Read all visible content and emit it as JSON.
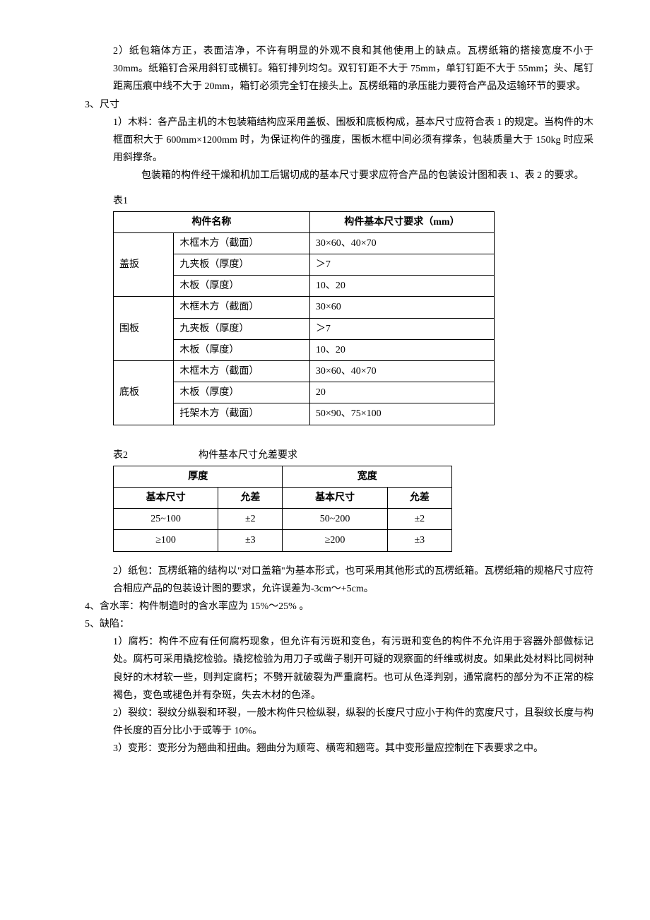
{
  "items": {
    "item2_2": "2）纸包箱体方正，表面洁净，不许有明显的外观不良和其他使用上的缺点。瓦楞纸箱的搭接宽度不小于 30mm。纸箱钉合采用斜钉或横钉。箱钉排列均匀。双钉钉距不大于 75mm，单钉钉距不大于 55mm；头、尾钉距离压痕中线不大于 20mm，箱钉必须完全钉在接头上。瓦楞纸箱的承压能力要符合产品及运输环节的要求。",
    "item3_header": "3、尺寸",
    "item3_1": "1）木料：各产品主机的木包装箱结构应采用盖板、围板和底板构成，基本尺寸应符合表 1 的规定。当构件的木框面积大于 600mm×1200mm 时，为保证构件的强度，围板木框中间必须有撑条，包装质量大于 150kg 时应采用斜撑条。",
    "item3_1_cont": "包装箱的构件经干燥和机加工后锯切成的基本尺寸要求应符合产品的包装设计图和表 1、表 2 的要求。",
    "item3_2": "2）纸包：瓦楞纸箱的结构以\"对口盖箱\"为基本形式，也可采用其他形式的瓦楞纸箱。瓦楞纸箱的规格尺寸应符合相应产品的包装设计图的要求，允许误差为-3cm～+5cm。",
    "item4": "4、含水率：构件制造时的含水率应为 15%～25% 。",
    "item5_header": "5、缺陷：",
    "item5_1": "1）腐朽：构件不应有任何腐朽现象，但允许有污斑和变色，有污斑和变色的构件不允许用于容器外部做标记处。腐朽可采用撬挖检验。撬挖检验为用刀子或凿子剔开可疑的观察面的纤维或树皮。如果此处材料比同树种良好的木材软一些，则判定腐朽；不劈开就破裂为严重腐朽。也可从色泽判别，通常腐朽的部分为不正常的棕褐色，变色或褪色并有杂斑，失去木材的色泽。",
    "item5_2": "2）裂纹：裂纹分纵裂和环裂，一般木构件只检纵裂，纵裂的长度尺寸应小于构件的宽度尺寸，且裂纹长度与构件长度的百分比小于或等于 10%。",
    "item5_3": "3）变形：变形分为翘曲和扭曲。翘曲分为顺弯、横弯和翘弯。其中变形量应控制在下表要求之中。"
  },
  "table1": {
    "label": "表1",
    "header1": "构件名称",
    "header2": "构件基本尺寸要求（mm）",
    "groups": [
      {
        "name": "盖扳",
        "rows": [
          [
            "木框木方（截面）",
            "30×60、40×70"
          ],
          [
            "九夹板（厚度）",
            "＞7"
          ],
          [
            "木板（厚度）",
            "10、20"
          ]
        ]
      },
      {
        "name": "围板",
        "rows": [
          [
            "木框木方（截面）",
            "30×60"
          ],
          [
            "九夹板（厚度）",
            "＞7"
          ],
          [
            "木板（厚度）",
            "10、20"
          ]
        ]
      },
      {
        "name": "底板",
        "rows": [
          [
            "木框木方（截面）",
            "30×60、40×70"
          ],
          [
            "木板（厚度）",
            "20"
          ],
          [
            "托架木方（截面）",
            "50×90、75×100"
          ]
        ]
      }
    ]
  },
  "table2": {
    "label": "表2",
    "caption": "构件基本尺寸允差要求",
    "group_headers": [
      "厚度",
      "宽度"
    ],
    "sub_headers": [
      "基本尺寸",
      "允差",
      "基本尺寸",
      "允差"
    ],
    "rows": [
      [
        "25~100",
        "±2",
        "50~200",
        "±2"
      ],
      [
        "≥100",
        "±3",
        "≥200",
        "±3"
      ]
    ]
  }
}
